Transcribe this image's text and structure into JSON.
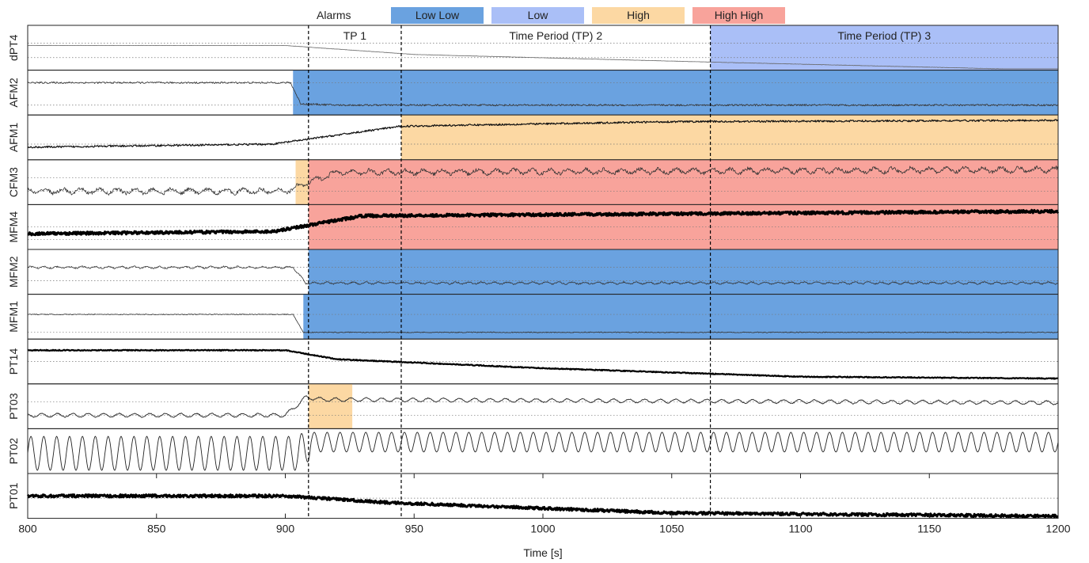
{
  "legend": {
    "label": "Alarms",
    "items": [
      {
        "key": "LL",
        "label": "Low Low",
        "color": "#6aa2e0"
      },
      {
        "key": "L",
        "label": "Low",
        "color": "#aabff7"
      },
      {
        "key": "H",
        "label": "High",
        "color": "#fcd8a3"
      },
      {
        "key": "HH",
        "label": "High High",
        "color": "#f8a39b"
      }
    ]
  },
  "chart_data": {
    "type": "line",
    "xlabel": "Time [s]",
    "xlim": [
      800,
      1200
    ],
    "xticks": [
      800,
      850,
      900,
      950,
      1000,
      1050,
      1100,
      1150,
      1200
    ],
    "grid": false,
    "legend_placement": "top",
    "period_lines": [
      909,
      945,
      1065
    ],
    "period_labels": [
      {
        "text": "TP 1",
        "x_from": 909,
        "x_to": 945
      },
      {
        "text": "Time Period (TP) 2",
        "x_from": 945,
        "x_to": 1065
      },
      {
        "text": "Time Period (TP) 3",
        "x_from": 1065,
        "x_to": 1200
      }
    ],
    "series": [
      {
        "name": "dPT4",
        "weight": 0.8,
        "color": "#666666",
        "baseline": [
          [
            800,
            0.55
          ],
          [
            900,
            0.55
          ],
          [
            950,
            0.35
          ],
          [
            1065,
            0.18
          ],
          [
            1200,
            0.0
          ]
        ],
        "noise": 0.003,
        "osc": {
          "amp": 0,
          "period": 10
        },
        "dotted": [
          0.6,
          0.28
        ],
        "alarms": [
          {
            "level": "L",
            "from": 1065,
            "to": 1200
          }
        ]
      },
      {
        "name": "AFM2",
        "weight": 0.8,
        "color": "#333333",
        "baseline": [
          [
            800,
            0.72
          ],
          [
            902,
            0.72
          ],
          [
            906,
            0.25
          ],
          [
            920,
            0.22
          ],
          [
            1200,
            0.22
          ]
        ],
        "noise": 0.02,
        "osc": {
          "amp": 0,
          "period": 10
        },
        "dotted": [
          0.72,
          0.22
        ],
        "alarms": [
          {
            "level": "LL",
            "from": 903,
            "to": 1200
          }
        ]
      },
      {
        "name": "AFM1",
        "weight": 1.2,
        "color": "#111111",
        "baseline": [
          [
            800,
            0.28
          ],
          [
            895,
            0.35
          ],
          [
            945,
            0.75
          ],
          [
            1050,
            0.85
          ],
          [
            1200,
            0.88
          ]
        ],
        "noise": 0.02,
        "osc": {
          "amp": 0,
          "period": 10
        },
        "dotted": [
          0.35
        ],
        "alarms": [
          {
            "level": "H",
            "from": 945,
            "to": 1200
          }
        ]
      },
      {
        "name": "CFM3",
        "weight": 0.8,
        "color": "#333333",
        "baseline": [
          [
            800,
            0.3
          ],
          [
            900,
            0.3
          ],
          [
            920,
            0.72
          ],
          [
            1200,
            0.78
          ]
        ],
        "noise": 0.04,
        "osc": {
          "amp": 0.05,
          "period": 7
        },
        "dotted": [
          0.3,
          0.6
        ],
        "alarms": [
          {
            "level": "H",
            "from": 904,
            "to": 909
          },
          {
            "level": "HH",
            "from": 909,
            "to": 1200
          }
        ]
      },
      {
        "name": "MFM4",
        "weight": 3.2,
        "color": "#000000",
        "baseline": [
          [
            800,
            0.35
          ],
          [
            895,
            0.4
          ],
          [
            930,
            0.75
          ],
          [
            1200,
            0.85
          ]
        ],
        "noise": 0.03,
        "osc": {
          "amp": 0,
          "period": 10
        },
        "dotted": [
          0.5,
          0.22
        ],
        "alarms": [
          {
            "level": "HH",
            "from": 909,
            "to": 1200
          }
        ]
      },
      {
        "name": "MFM2",
        "weight": 0.8,
        "color": "#333333",
        "baseline": [
          [
            800,
            0.6
          ],
          [
            903,
            0.6
          ],
          [
            908,
            0.25
          ],
          [
            1200,
            0.25
          ]
        ],
        "noise": 0.015,
        "osc": {
          "amp": 0.02,
          "period": 5
        },
        "dotted": [
          0.6,
          0.3
        ],
        "alarms": [
          {
            "level": "LL",
            "from": 909,
            "to": 1200
          }
        ]
      },
      {
        "name": "MFM1",
        "weight": 0.8,
        "color": "#333333",
        "baseline": [
          [
            800,
            0.55
          ],
          [
            903,
            0.55
          ],
          [
            907,
            0.15
          ],
          [
            1200,
            0.15
          ]
        ],
        "noise": 0.01,
        "osc": {
          "amp": 0,
          "period": 10
        },
        "dotted": [
          0.55,
          0.15
        ],
        "alarms": [
          {
            "level": "LL",
            "from": 907,
            "to": 1200
          }
        ]
      },
      {
        "name": "PT14",
        "weight": 2.2,
        "color": "#000000",
        "baseline": [
          [
            800,
            0.75
          ],
          [
            900,
            0.75
          ],
          [
            920,
            0.55
          ],
          [
            1000,
            0.35
          ],
          [
            1100,
            0.16
          ],
          [
            1200,
            0.12
          ]
        ],
        "noise": 0.01,
        "osc": {
          "amp": 0,
          "period": 10
        },
        "dotted": [
          0.5
        ],
        "alarms": []
      },
      {
        "name": "PT03",
        "weight": 1.0,
        "color": "#333333",
        "baseline": [
          [
            800,
            0.3
          ],
          [
            900,
            0.3
          ],
          [
            908,
            0.7
          ],
          [
            915,
            0.65
          ],
          [
            1200,
            0.58
          ]
        ],
        "noise": 0.01,
        "osc": {
          "amp": 0.04,
          "period": 6
        },
        "dotted": [
          0.3,
          0.6
        ],
        "alarms": [
          {
            "level": "H",
            "from": 909,
            "to": 926
          }
        ]
      },
      {
        "name": "PT02",
        "weight": 0.9,
        "color": "#222222",
        "baseline": [
          [
            800,
            0.45
          ],
          [
            905,
            0.45
          ],
          [
            910,
            0.7
          ],
          [
            1200,
            0.7
          ]
        ],
        "noise": 0.0,
        "osc": {
          "amp": 0.38,
          "period": 5
        },
        "osc2": {
          "from": 910,
          "amp": 0.22,
          "period": 5
        },
        "dotted": [],
        "alarms": []
      },
      {
        "name": "PT01",
        "weight": 3.0,
        "color": "#000000",
        "baseline": [
          [
            800,
            0.5
          ],
          [
            900,
            0.5
          ],
          [
            940,
            0.35
          ],
          [
            1050,
            0.12
          ],
          [
            1200,
            0.05
          ]
        ],
        "noise": 0.03,
        "osc": {
          "amp": 0,
          "period": 10
        },
        "dotted": [
          0.45
        ],
        "alarms": []
      }
    ]
  }
}
